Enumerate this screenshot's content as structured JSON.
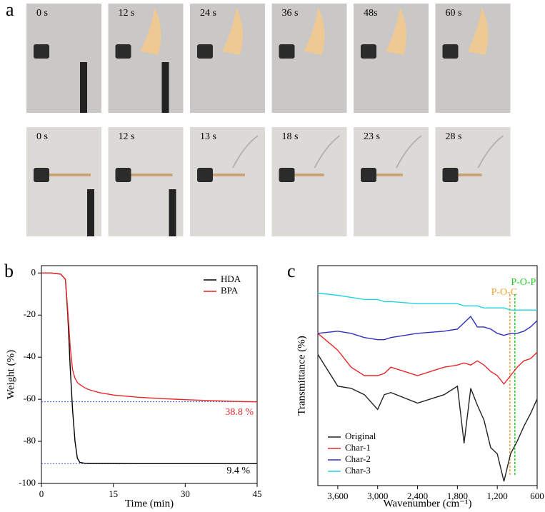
{
  "panel_labels": [
    "a",
    "b",
    "c"
  ],
  "photos": {
    "row1": [
      "0 s",
      "12 s",
      "24 s",
      "36 s",
      "48s",
      "60 s"
    ],
    "row2": [
      "0 s",
      "12 s",
      "13 s",
      "18 s",
      "23 s",
      "28 s"
    ]
  },
  "chart_data": [
    {
      "type": "line",
      "x_label": "Time (min)",
      "y_label": "Weight (%)",
      "x": [
        0,
        2,
        4,
        5,
        5.5,
        6,
        6.5,
        7,
        7.5,
        8,
        9,
        10,
        12,
        15,
        20,
        25,
        30,
        35,
        40,
        45
      ],
      "series": [
        {
          "name": "HDA",
          "color": "#000000",
          "values": [
            0,
            0,
            -0.5,
            -3,
            -20,
            -45,
            -65,
            -80,
            -88,
            -90,
            -90.4,
            -90.5,
            -90.5,
            -90.5,
            -90.6,
            -90.6,
            -90.6,
            -90.6,
            -90.6,
            -90.6
          ]
        },
        {
          "name": "BPA",
          "color": "#e8262a",
          "values": [
            0,
            0,
            -0.5,
            -3,
            -18,
            -35,
            -46,
            -50,
            -52,
            -53,
            -54.5,
            -55.5,
            -56.8,
            -58,
            -59,
            -59.7,
            -60.2,
            -60.6,
            -61,
            -61.2
          ]
        }
      ],
      "hlines": [
        {
          "value": -61.2,
          "color": "#3b5bdb"
        },
        {
          "value": -90.6,
          "color": "#3b5bdb"
        }
      ],
      "annotations": [
        {
          "text": "38.8 %",
          "color": "#e8262a"
        },
        {
          "text": "9.4 %",
          "color": "#000000"
        }
      ],
      "xlim": [
        0,
        45
      ],
      "xticks": [
        0,
        15,
        30,
        45
      ],
      "ylim": [
        -100,
        3.5
      ],
      "yticks": [
        0,
        -20,
        -40,
        -60,
        -80,
        -100
      ],
      "legend": "top-right"
    },
    {
      "type": "line",
      "x_label": "Wavenumber (cm⁻¹)",
      "y_label": "Transmittance (%)",
      "x": [
        3900,
        3600,
        3400,
        3200,
        3000,
        2900,
        2800,
        2400,
        2000,
        1800,
        1700,
        1600,
        1500,
        1400,
        1300,
        1200,
        1100,
        1000,
        900,
        800,
        700,
        600
      ],
      "series": [
        {
          "name": "Original",
          "color": "#222222",
          "values": [
            60,
            45,
            44,
            41,
            34,
            41,
            42,
            37,
            41,
            45,
            18,
            44,
            36,
            29,
            16,
            13,
            0,
            13,
            19,
            26,
            32,
            39
          ]
        },
        {
          "name": "Char-1",
          "color": "#e8262a",
          "values": [
            70,
            62,
            54,
            50,
            50,
            51,
            54,
            50,
            54,
            55,
            56,
            55,
            57,
            55,
            52,
            50,
            46,
            50,
            54,
            57,
            58,
            61
          ]
        },
        {
          "name": "Char-2",
          "color": "#3030c0",
          "values": [
            70,
            71,
            70,
            68,
            67,
            67,
            68,
            70,
            71,
            72,
            75,
            78,
            73,
            73,
            72,
            70,
            69,
            70,
            70,
            71,
            73,
            76
          ]
        },
        {
          "name": "Char-3",
          "color": "#22d3e0",
          "values": [
            89,
            88,
            87,
            86,
            86,
            85,
            85,
            84,
            84,
            84,
            83,
            83,
            83,
            82,
            82,
            82,
            82,
            81,
            81,
            81,
            81,
            81
          ]
        }
      ],
      "vlines": [
        {
          "value": 1010,
          "label": "P-O-C",
          "color": "#f0a030"
        },
        {
          "value": 935,
          "label": "P-O-P",
          "color": "#22cc22"
        }
      ],
      "xlim": [
        3900,
        600
      ],
      "xticks": [
        {
          "value": 3600,
          "label": "3,600"
        },
        {
          "value": 3000,
          "label": "3,000"
        },
        {
          "value": 2400,
          "label": "2,400"
        },
        {
          "value": 1800,
          "label": "1,800"
        },
        {
          "value": 1200,
          "label": "1,200"
        },
        600
      ],
      "ylim": [
        -2,
        102
      ],
      "legend": "bottom-left"
    }
  ]
}
